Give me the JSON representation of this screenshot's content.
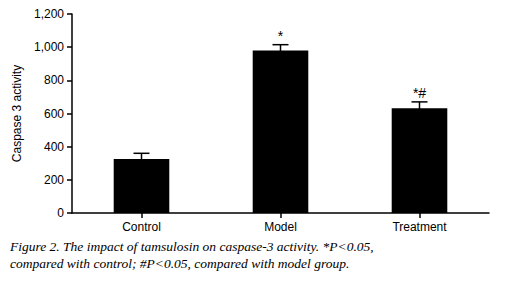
{
  "chart_data": {
    "type": "bar",
    "caption": [
      "Figure 2. The impact of tamsulosin on caspase-3 activity. *P<0.05,",
      "compared with control; #P<0.05, compared with model group."
    ],
    "y_label": "Caspase 3 activity",
    "categories": [
      "Control",
      "Model",
      "Treatment"
    ],
    "values": [
      325,
      980,
      632
    ],
    "errors": [
      35,
      35,
      38
    ],
    "annotations": [
      null,
      "*",
      "*#"
    ],
    "color": "#000000",
    "ylim": [
      0,
      1200
    ],
    "yticks": [
      0,
      200,
      400,
      600,
      800,
      1000,
      1200
    ],
    "grid": false
  }
}
